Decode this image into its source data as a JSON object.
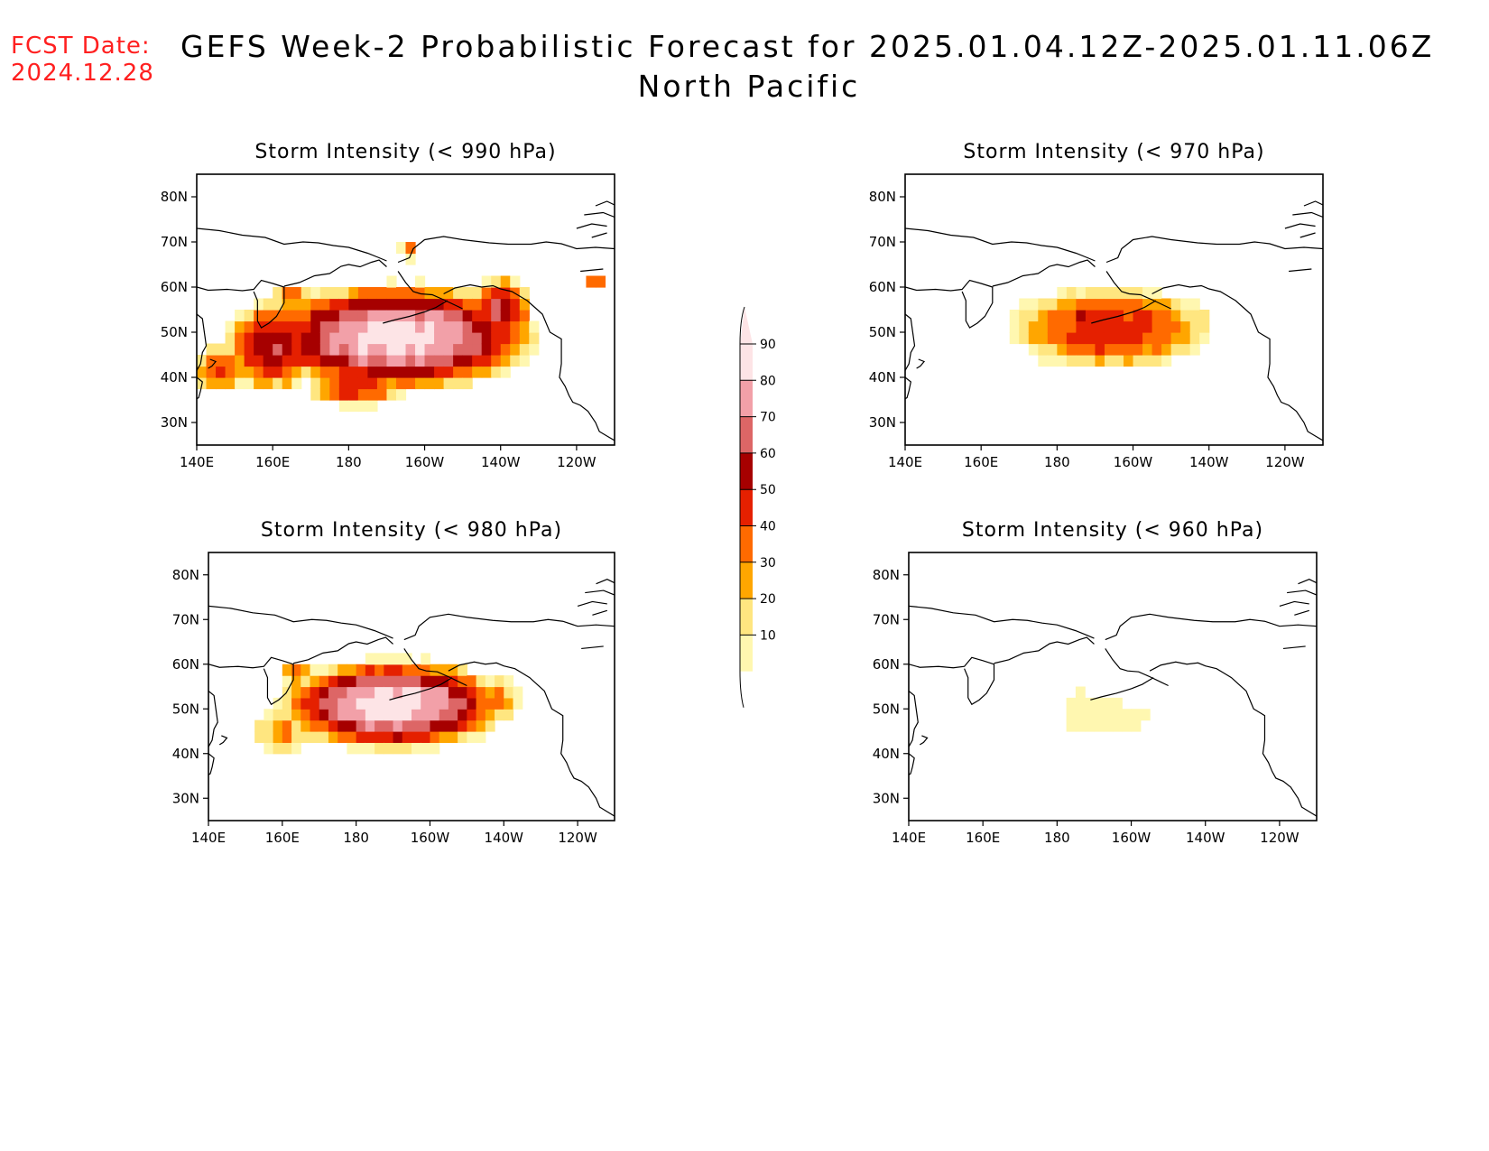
{
  "fcst": {
    "line1": "FCST Date:",
    "line2": "2024.12.28"
  },
  "title": {
    "line1": "GEFS Week-2 Probabilistic Forecast for 2025.01.04.12Z-2025.01.11.06Z",
    "line2": "North Pacific"
  },
  "colors": {
    "fcst_text": "#ff2020",
    "levels": [
      "#fff7b0",
      "#ffe680",
      "#ffa600",
      "#ff6a00",
      "#e52000",
      "#a60000",
      "#dd6666",
      "#f2a0a8",
      "#fde4e6"
    ]
  },
  "chart_data": [
    {
      "type": "heatmap",
      "title": "Storm Intensity (< 990 hPa)",
      "threshold_hpa": 990,
      "x_ticks": [
        "140E",
        "160E",
        "180",
        "160W",
        "140W",
        "120W"
      ],
      "x_values": [
        140,
        160,
        180,
        200,
        220,
        240
      ],
      "y_ticks": [
        "80N",
        "70N",
        "60N",
        "50N",
        "40N",
        "30N"
      ],
      "y_values": [
        80,
        70,
        60,
        50,
        40,
        30
      ],
      "xlim": [
        140,
        250
      ],
      "ylim": [
        25,
        85
      ],
      "blobs": [
        {
          "lon": 193,
          "lat": 49,
          "rlon": 40,
          "rlat": 13,
          "max": 95
        },
        {
          "lon": 160,
          "lat": 47,
          "rlon": 14,
          "rlat": 11,
          "max": 68
        },
        {
          "lon": 146,
          "lat": 42,
          "rlon": 8,
          "rlat": 6,
          "max": 52
        },
        {
          "lon": 182,
          "lat": 38,
          "rlon": 14,
          "rlat": 5,
          "max": 58
        },
        {
          "lon": 220,
          "lat": 55,
          "rlon": 9,
          "rlat": 8,
          "max": 72
        },
        {
          "lon": 165,
          "lat": 58,
          "rlon": 5,
          "rlat": 3,
          "max": 50
        },
        {
          "lon": 196,
          "lat": 68,
          "rlon": 3,
          "rlat": 2,
          "max": 45
        },
        {
          "lon": 245,
          "lat": 61,
          "rlon": 4,
          "rlat": 2,
          "max": 45
        }
      ]
    },
    {
      "type": "heatmap",
      "title": "Storm Intensity (< 970 hPa)",
      "threshold_hpa": 970,
      "x_ticks": [
        "140E",
        "160E",
        "180",
        "160W",
        "140W",
        "120W"
      ],
      "x_values": [
        140,
        160,
        180,
        200,
        220,
        240
      ],
      "y_ticks": [
        "80N",
        "70N",
        "60N",
        "50N",
        "40N",
        "30N"
      ],
      "y_values": [
        80,
        70,
        60,
        50,
        40,
        30
      ],
      "xlim": [
        140,
        250
      ],
      "ylim": [
        25,
        85
      ],
      "blobs": [
        {
          "lon": 194,
          "lat": 51,
          "rlon": 30,
          "rlat": 10,
          "max": 58
        },
        {
          "lon": 186,
          "lat": 53,
          "rlon": 5,
          "rlat": 3,
          "max": 65
        },
        {
          "lon": 199,
          "lat": 50,
          "rlon": 5,
          "rlat": 3,
          "max": 62
        },
        {
          "lon": 216,
          "lat": 53,
          "rlon": 5,
          "rlat": 3,
          "max": 25
        }
      ]
    },
    {
      "type": "heatmap",
      "title": "Storm Intensity (< 980 hPa)",
      "threshold_hpa": 980,
      "x_ticks": [
        "140E",
        "160E",
        "180",
        "160W",
        "140W",
        "120W"
      ],
      "x_values": [
        140,
        160,
        180,
        200,
        220,
        240
      ],
      "y_ticks": [
        "80N",
        "70N",
        "60N",
        "50N",
        "40N",
        "30N"
      ],
      "y_values": [
        80,
        70,
        60,
        50,
        40,
        30
      ],
      "xlim": [
        140,
        250
      ],
      "ylim": [
        25,
        85
      ],
      "blobs": [
        {
          "lon": 190,
          "lat": 51,
          "rlon": 34,
          "rlat": 11,
          "max": 96
        },
        {
          "lon": 160,
          "lat": 45,
          "rlon": 9,
          "rlat": 6,
          "max": 40
        },
        {
          "lon": 218,
          "lat": 52,
          "rlon": 8,
          "rlat": 6,
          "max": 40
        },
        {
          "lon": 164,
          "lat": 58,
          "rlon": 5,
          "rlat": 3,
          "max": 45
        }
      ]
    },
    {
      "type": "heatmap",
      "title": "Storm Intensity (< 960 hPa)",
      "threshold_hpa": 960,
      "x_ticks": [
        "140E",
        "160E",
        "180",
        "160W",
        "140W",
        "120W"
      ],
      "x_values": [
        140,
        160,
        180,
        200,
        220,
        240
      ],
      "y_ticks": [
        "80N",
        "70N",
        "60N",
        "50N",
        "40N",
        "30N"
      ],
      "y_values": [
        80,
        70,
        60,
        50,
        40,
        30
      ],
      "xlim": [
        140,
        250
      ],
      "ylim": [
        25,
        85
      ],
      "blobs": [
        {
          "lon": 191,
          "lat": 49,
          "rlon": 14,
          "rlat": 6,
          "max": 18
        },
        {
          "lon": 185,
          "lat": 52,
          "rlon": 4,
          "rlat": 3,
          "max": 16
        },
        {
          "lon": 201,
          "lat": 48,
          "rlon": 6,
          "rlat": 4,
          "max": 16
        }
      ]
    }
  ],
  "colorbar": {
    "labels": [
      "90",
      "80",
      "70",
      "60",
      "50",
      "40",
      "30",
      "20",
      "10"
    ],
    "levels": [
      90,
      80,
      70,
      60,
      50,
      40,
      30,
      20,
      10
    ]
  }
}
